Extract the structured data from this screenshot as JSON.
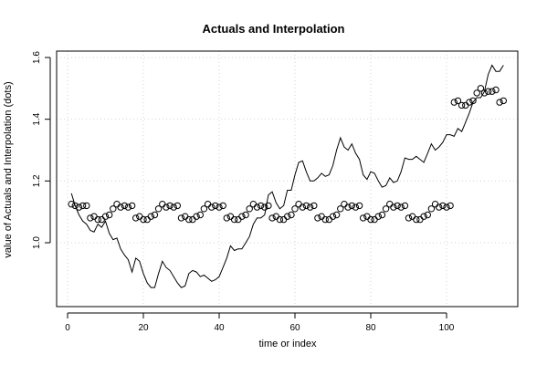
{
  "chart_data": {
    "type": "line",
    "title": "Actuals and Interpolation",
    "xlabel": "time or index",
    "ylabel": "value of Actuals and Interpolation (dots)",
    "xlim": [
      1,
      115
    ],
    "ylim": [
      0.85,
      1.6
    ],
    "x_ticks": [
      0,
      20,
      40,
      60,
      80,
      100
    ],
    "x_tick_labels": [
      "0",
      "20",
      "40",
      "60",
      "80",
      "100"
    ],
    "y_ticks": [
      1.0,
      1.2,
      1.4,
      1.6
    ],
    "y_tick_labels": [
      "1.0",
      "1.2",
      "1.4",
      "1.6"
    ],
    "grid": true,
    "legend": "none",
    "colors": {
      "line": "#000000",
      "points": "#000000",
      "grid": "#d3d3d3"
    },
    "series": [
      {
        "style": "line",
        "x": [
          1,
          2,
          3,
          4,
          5,
          6,
          7,
          8,
          9,
          10,
          11,
          12,
          13,
          14,
          15,
          16,
          17,
          18,
          19,
          20,
          21,
          22,
          23,
          24,
          25,
          26,
          27,
          28,
          29,
          30,
          31,
          32,
          33,
          34,
          35,
          36,
          37,
          38,
          39,
          40,
          41,
          42,
          43,
          44,
          45,
          46,
          47,
          48,
          49,
          50,
          51,
          52,
          53,
          54,
          55,
          56,
          57,
          58,
          59,
          60,
          61,
          62,
          63,
          64,
          65,
          66,
          67,
          68,
          69,
          70,
          71,
          72,
          73,
          74,
          75,
          76,
          77,
          78,
          79,
          80,
          81,
          82,
          83,
          84,
          85,
          86,
          87,
          88,
          89,
          90,
          91,
          92,
          93,
          94,
          95,
          96,
          97,
          98,
          99,
          100,
          101,
          102,
          103,
          104,
          105,
          106,
          107,
          108,
          109,
          110,
          111,
          112,
          113,
          114,
          115
        ],
        "values": [
          1.16,
          1.12,
          1.09,
          1.07,
          1.06,
          1.04,
          1.035,
          1.06,
          1.05,
          1.07,
          1.03,
          1.01,
          1.015,
          0.98,
          0.96,
          0.945,
          0.905,
          0.95,
          0.94,
          0.9,
          0.87,
          0.855,
          0.855,
          0.9,
          0.94,
          0.92,
          0.91,
          0.89,
          0.87,
          0.855,
          0.86,
          0.9,
          0.91,
          0.905,
          0.89,
          0.895,
          0.885,
          0.875,
          0.88,
          0.89,
          0.92,
          0.95,
          0.99,
          0.975,
          0.98,
          0.98,
          1.0,
          1.02,
          1.06,
          1.08,
          1.08,
          1.09,
          1.155,
          1.165,
          1.13,
          1.11,
          1.12,
          1.17,
          1.17,
          1.22,
          1.26,
          1.265,
          1.23,
          1.2,
          1.2,
          1.21,
          1.225,
          1.215,
          1.22,
          1.25,
          1.3,
          1.34,
          1.31,
          1.3,
          1.32,
          1.29,
          1.27,
          1.22,
          1.205,
          1.23,
          1.225,
          1.2,
          1.18,
          1.185,
          1.21,
          1.195,
          1.2,
          1.23,
          1.275,
          1.27,
          1.27,
          1.28,
          1.27,
          1.26,
          1.29,
          1.32,
          1.3,
          1.31,
          1.325,
          1.35,
          1.35,
          1.345,
          1.37,
          1.36,
          1.39,
          1.42,
          1.455,
          1.47,
          1.47,
          1.49,
          1.545,
          1.575,
          1.555,
          1.555,
          1.575
        ]
      },
      {
        "style": "points",
        "x": [
          1,
          2,
          3,
          4,
          5,
          6,
          7,
          8,
          9,
          10,
          11,
          12,
          13,
          14,
          15,
          16,
          17,
          18,
          19,
          20,
          21,
          22,
          23,
          24,
          25,
          26,
          27,
          28,
          29,
          30,
          31,
          32,
          33,
          34,
          35,
          36,
          37,
          38,
          39,
          40,
          41,
          42,
          43,
          44,
          45,
          46,
          47,
          48,
          49,
          50,
          51,
          52,
          53,
          54,
          55,
          56,
          57,
          58,
          59,
          60,
          61,
          62,
          63,
          64,
          65,
          66,
          67,
          68,
          69,
          70,
          71,
          72,
          73,
          74,
          75,
          76,
          77,
          78,
          79,
          80,
          81,
          82,
          83,
          84,
          85,
          86,
          87,
          88,
          89,
          90,
          91,
          92,
          93,
          94,
          95,
          96,
          97,
          98,
          99,
          100,
          101,
          102,
          103,
          104,
          105,
          106,
          107,
          108,
          109,
          110,
          111,
          112,
          113,
          114,
          115
        ],
        "values": [
          1.125,
          1.12,
          1.115,
          1.12,
          1.12,
          1.08,
          1.085,
          1.075,
          1.075,
          1.085,
          1.09,
          1.11,
          1.125,
          1.115,
          1.12,
          1.115,
          1.12,
          1.08,
          1.085,
          1.075,
          1.075,
          1.085,
          1.09,
          1.11,
          1.125,
          1.115,
          1.12,
          1.115,
          1.12,
          1.08,
          1.085,
          1.075,
          1.075,
          1.085,
          1.09,
          1.11,
          1.125,
          1.115,
          1.12,
          1.115,
          1.12,
          1.08,
          1.085,
          1.075,
          1.075,
          1.085,
          1.09,
          1.11,
          1.125,
          1.115,
          1.12,
          1.115,
          1.12,
          1.08,
          1.085,
          1.075,
          1.075,
          1.085,
          1.09,
          1.11,
          1.125,
          1.115,
          1.12,
          1.115,
          1.12,
          1.08,
          1.085,
          1.075,
          1.075,
          1.085,
          1.09,
          1.11,
          1.125,
          1.115,
          1.12,
          1.115,
          1.12,
          1.08,
          1.085,
          1.075,
          1.075,
          1.085,
          1.09,
          1.11,
          1.125,
          1.115,
          1.12,
          1.115,
          1.12,
          1.08,
          1.085,
          1.075,
          1.075,
          1.085,
          1.09,
          1.11,
          1.125,
          1.115,
          1.12,
          1.115,
          1.12,
          1.455,
          1.46,
          1.445,
          1.445,
          1.455,
          1.46,
          1.485,
          1.5,
          1.485,
          1.49,
          1.49,
          1.495,
          1.455,
          1.46
        ]
      }
    ]
  }
}
